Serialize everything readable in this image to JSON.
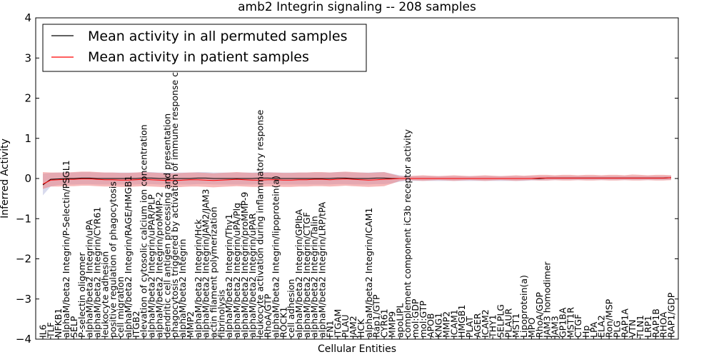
{
  "chart_data": {
    "type": "line",
    "title": "amb2 Integrin signaling -- 208 samples",
    "xlabel": "Cellular Entities",
    "ylabel": "Inferred Activity",
    "ylim": [
      -4,
      4
    ],
    "yticks": [
      -4,
      -3,
      -2,
      -1,
      0,
      1,
      2,
      3,
      4
    ],
    "ytick_labels": [
      "−4",
      "−3",
      "−2",
      "−1",
      "0",
      "1",
      "2",
      "3",
      "4"
    ],
    "grid": false,
    "legend_position": "top-left",
    "categories": [
      "IL6",
      "TLF",
      "NFKB1",
      "alphaM/beta2 Integrin/P-Selectin/PSGL1",
      "SELP",
      "P-selectin oligomer",
      "alphaM/beta2 Integrin/uPA",
      "alphaM/beta2 Integrin/CYR61",
      "leukocyte adhesion",
      "positive regulation of phagocytosis",
      "cell migration",
      "alphaM/beta2 Integrin/RAGE/HMGB1",
      "ITGB2",
      "elevation of cytosolic calcium ion concentration",
      "alphaM/beta2 Integrin/uPAR/PLP",
      "alphaM/beta2 Integrin/proMMP-2",
      "dendritic cell antigen processing and presentation",
      "phagocytosis triggered by activation of immune response cell surface",
      "alphaM/beta2 Integrin",
      "MMP2",
      "alphaM/beta2 Integrin/Hck",
      "alphaM/beta2 Integrin/JAM2/JAM3",
      "actin filament polymerization",
      "fibrinolysis",
      "alphaM/beta2 Integrin/Thy1",
      "alphaM/beta2 Integrin/uPA/Plg",
      "alphaM/beta2 Integrin/proMMP-9",
      "alphaM/beta2 Integrin/uPAR",
      "leukocyte activation during inflammatory response",
      "RhoA/GTP",
      "alphaM/beta2 Integrin/lipoprotein(a)",
      "ROCK1",
      "cell adhesion",
      "alphaM/beta2 Integrin/GPIbA",
      "alphaM/beta2 Integrin/CTGF",
      "alphaM/beta2 Integrin/Talin",
      "alphaM/beta2 Integrin/LRP/tPA",
      "FN1",
      "ITGAM",
      "PLAU",
      "JAM2",
      "HCK",
      "alphaM/beta2 Integrin/ICAM1",
      "Rap1/GTP",
      "CYR61",
      "MMP9",
      "apoLIPL",
      "complement component iC3b receptor activity",
      "mol:GDP",
      "mol:GTP",
      "APOB",
      "KNG1",
      "MMP2",
      "ICAM1",
      "HMGB1",
      "PLAT",
      "AGER",
      "ICAM2",
      "THY1",
      "SELPLG",
      "PLAUR",
      "MST1",
      "Lipoprotein(a)",
      "MPO",
      "RhoA/GDP",
      "JAM3 homodimer",
      "JAM3",
      "GP1BA",
      "MST1R",
      "CTGF",
      "Hp",
      "LPA",
      "ELA2",
      "Ron/MSP",
      "PLG",
      "RAP1A",
      "VTN",
      "TLN1",
      "LRP1",
      "RAP1B",
      "RHOA",
      "RAP1/GDP"
    ],
    "series": [
      {
        "name": "Mean activity in all permuted samples",
        "color": "#000000",
        "band_color": "#a8aed8",
        "values": [
          -0.16,
          -0.02,
          -0.01,
          0.0,
          0.0,
          0.01,
          0.01,
          0.0,
          0.0,
          0.0,
          0.0,
          0.0,
          0.0,
          0.01,
          0.01,
          0.0,
          0.0,
          0.0,
          0.0,
          0.0,
          0.01,
          0.01,
          0.0,
          0.0,
          0.0,
          0.0,
          0.0,
          0.0,
          0.01,
          0.01,
          0.0,
          0.0,
          0.0,
          0.0,
          0.0,
          0.0,
          0.0,
          0.0,
          0.01,
          0.01,
          0.0,
          0.0,
          0.0,
          0.01,
          0.01,
          0.0,
          0.0,
          0.0,
          0.0,
          0.0,
          0.0,
          0.0,
          0.0,
          0.0,
          0.0,
          0.0,
          0.0,
          0.0,
          0.0,
          0.0,
          0.0,
          0.0,
          0.0,
          0.0,
          0.0,
          0.01,
          0.01,
          0.01,
          0.01,
          0.01,
          0.01,
          0.01,
          0.01,
          0.01,
          0.01,
          0.01,
          0.01,
          0.01,
          0.01,
          0.01,
          0.01,
          0.02
        ],
        "band_low": [
          -0.42,
          -0.2,
          -0.16,
          -0.15,
          -0.15,
          -0.14,
          -0.14,
          -0.15,
          -0.15,
          -0.15,
          -0.15,
          -0.15,
          -0.15,
          -0.14,
          -0.14,
          -0.15,
          -0.15,
          -0.15,
          -0.15,
          -0.15,
          -0.14,
          -0.14,
          -0.15,
          -0.15,
          -0.15,
          -0.15,
          -0.15,
          -0.15,
          -0.14,
          -0.14,
          -0.15,
          -0.15,
          -0.15,
          -0.15,
          -0.15,
          -0.15,
          -0.15,
          -0.15,
          -0.14,
          -0.14,
          -0.15,
          -0.15,
          -0.15,
          -0.14,
          -0.14,
          -0.12,
          -0.08,
          -0.06,
          -0.06,
          -0.06,
          -0.06,
          -0.06,
          -0.06,
          -0.06,
          -0.06,
          -0.06,
          -0.06,
          -0.06,
          -0.06,
          -0.06,
          -0.06,
          -0.06,
          -0.06,
          -0.05,
          -0.05,
          -0.05,
          -0.04,
          -0.04,
          -0.04,
          -0.04,
          -0.04,
          -0.04,
          -0.04,
          -0.04,
          -0.04,
          -0.04,
          -0.04,
          -0.04,
          -0.04,
          -0.04,
          -0.04,
          -0.03
        ],
        "band_high": [
          0.12,
          0.14,
          0.15,
          0.15,
          0.15,
          0.16,
          0.16,
          0.15,
          0.15,
          0.15,
          0.15,
          0.15,
          0.15,
          0.16,
          0.16,
          0.15,
          0.15,
          0.15,
          0.15,
          0.15,
          0.16,
          0.16,
          0.15,
          0.15,
          0.15,
          0.15,
          0.15,
          0.15,
          0.16,
          0.16,
          0.15,
          0.15,
          0.15,
          0.15,
          0.15,
          0.15,
          0.15,
          0.15,
          0.16,
          0.16,
          0.15,
          0.15,
          0.15,
          0.16,
          0.16,
          0.12,
          0.08,
          0.06,
          0.06,
          0.06,
          0.06,
          0.06,
          0.06,
          0.06,
          0.06,
          0.06,
          0.06,
          0.06,
          0.06,
          0.06,
          0.06,
          0.06,
          0.06,
          0.06,
          0.06,
          0.06,
          0.06,
          0.06,
          0.06,
          0.06,
          0.06,
          0.06,
          0.06,
          0.06,
          0.06,
          0.06,
          0.06,
          0.06,
          0.06,
          0.06,
          0.06,
          0.07
        ]
      },
      {
        "name": "Mean activity in patient samples",
        "color": "#ff0000",
        "band_color": "#f08080",
        "values": [
          -0.14,
          -0.04,
          -0.03,
          -0.02,
          -0.02,
          -0.01,
          -0.01,
          -0.02,
          -0.03,
          -0.03,
          -0.04,
          -0.04,
          -0.03,
          -0.02,
          -0.03,
          -0.04,
          -0.05,
          -0.05,
          -0.04,
          -0.03,
          -0.03,
          -0.04,
          -0.05,
          -0.04,
          -0.03,
          -0.02,
          -0.03,
          -0.04,
          -0.04,
          -0.03,
          -0.03,
          -0.04,
          -0.04,
          -0.03,
          -0.03,
          -0.02,
          -0.02,
          -0.03,
          -0.02,
          -0.01,
          -0.02,
          -0.03,
          -0.04,
          -0.03,
          -0.02,
          -0.01,
          0.0,
          0.0,
          0.0,
          0.0,
          0.0,
          0.0,
          0.0,
          0.0,
          0.0,
          0.0,
          0.0,
          0.0,
          0.0,
          0.0,
          0.0,
          0.0,
          0.0,
          0.0,
          0.01,
          0.01,
          0.01,
          0.01,
          0.01,
          0.01,
          0.01,
          0.01,
          0.01,
          0.01,
          0.01,
          0.01,
          0.01,
          0.01,
          0.01,
          0.01,
          0.01,
          0.02
        ],
        "band_low": [
          -0.26,
          -0.2,
          -0.2,
          -0.19,
          -0.19,
          -0.18,
          -0.18,
          -0.19,
          -0.2,
          -0.2,
          -0.21,
          -0.21,
          -0.2,
          -0.19,
          -0.2,
          -0.21,
          -0.22,
          -0.22,
          -0.21,
          -0.2,
          -0.2,
          -0.21,
          -0.22,
          -0.21,
          -0.2,
          -0.19,
          -0.2,
          -0.21,
          -0.21,
          -0.2,
          -0.2,
          -0.21,
          -0.21,
          -0.2,
          -0.2,
          -0.19,
          -0.19,
          -0.2,
          -0.19,
          -0.18,
          -0.19,
          -0.2,
          -0.21,
          -0.2,
          -0.19,
          -0.13,
          -0.06,
          -0.04,
          -0.05,
          -0.06,
          -0.05,
          -0.04,
          -0.05,
          -0.06,
          -0.05,
          -0.04,
          -0.05,
          -0.06,
          -0.05,
          -0.04,
          -0.05,
          -0.06,
          -0.05,
          -0.04,
          -0.05,
          -0.05,
          -0.04,
          -0.05,
          -0.05,
          -0.04,
          -0.05,
          -0.05,
          -0.04,
          -0.05,
          -0.05,
          -0.04,
          -0.05,
          -0.05,
          -0.04,
          -0.05,
          -0.05,
          -0.04
        ],
        "band_high": [
          0.16,
          0.15,
          0.15,
          0.15,
          0.16,
          0.17,
          0.17,
          0.16,
          0.15,
          0.15,
          0.14,
          0.14,
          0.15,
          0.16,
          0.15,
          0.14,
          0.13,
          0.13,
          0.14,
          0.15,
          0.15,
          0.14,
          0.13,
          0.14,
          0.15,
          0.16,
          0.15,
          0.14,
          0.14,
          0.15,
          0.15,
          0.14,
          0.14,
          0.15,
          0.15,
          0.16,
          0.16,
          0.15,
          0.16,
          0.17,
          0.16,
          0.15,
          0.14,
          0.15,
          0.16,
          0.11,
          0.06,
          0.06,
          0.07,
          0.08,
          0.07,
          0.06,
          0.07,
          0.08,
          0.07,
          0.06,
          0.07,
          0.08,
          0.07,
          0.06,
          0.07,
          0.08,
          0.07,
          0.08,
          0.09,
          0.09,
          0.08,
          0.09,
          0.09,
          0.08,
          0.09,
          0.09,
          0.08,
          0.09,
          0.09,
          0.08,
          0.1,
          0.09,
          0.08,
          0.09,
          0.09,
          0.08
        ]
      }
    ]
  }
}
